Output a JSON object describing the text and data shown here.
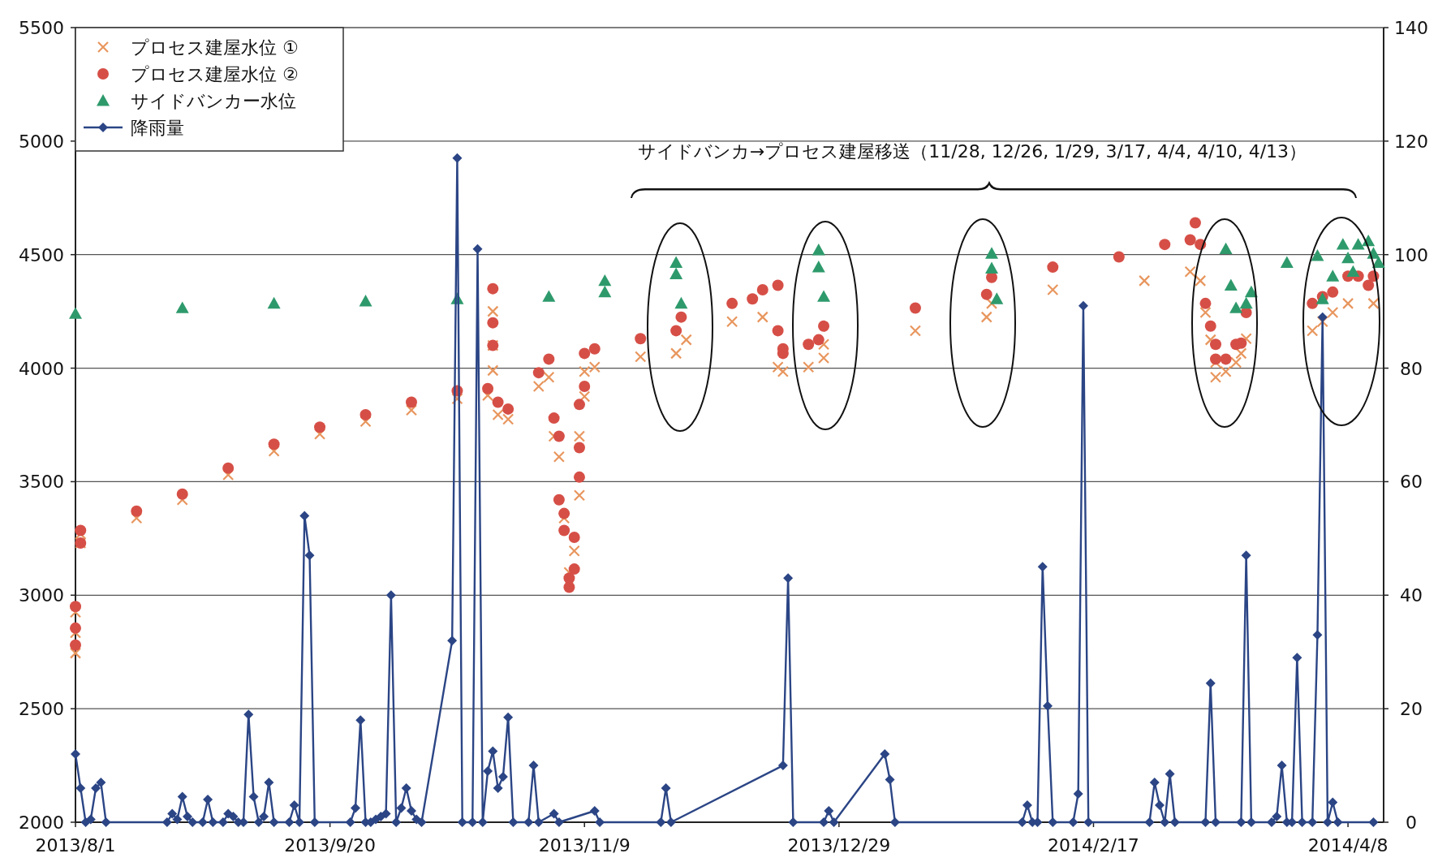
{
  "chart_data": {
    "type": "scatter",
    "x": [
      "2013-08-01",
      "2013-08-01",
      "2013-08-01",
      "2013-08-02",
      "2013-08-02",
      "2013-08-13",
      "2013-08-22",
      "2013-08-31",
      "2013-09-09",
      "2013-09-18",
      "2013-09-27",
      "2013-10-06",
      "2013-10-15",
      "2013-10-21",
      "2013-10-22",
      "2013-10-22",
      "2013-10-22",
      "2013-10-23",
      "2013-10-25",
      "2013-10-31",
      "2013-11-02",
      "2013-11-03",
      "2013-11-04",
      "2013-11-05",
      "2013-11-06",
      "2013-11-07",
      "2013-11-08",
      "2013-11-08",
      "2013-11-09",
      "2013-11-09",
      "2013-11-11",
      "2013-11-20",
      "2013-11-27",
      "2013-11-29",
      "2013-12-08",
      "2013-12-14",
      "2013-12-17",
      "2013-12-18",
      "2013-12-23",
      "2013-12-26",
      "2013-12-26",
      "2014-01-13",
      "2014-01-27",
      "2014-01-28",
      "2014-02-09",
      "2014-02-27",
      "2014-03-08",
      "2014-03-10",
      "2014-03-11",
      "2014-03-12",
      "2014-03-13",
      "2014-03-13",
      "2014-03-15",
      "2014-03-17",
      "2014-03-18",
      "2014-03-19",
      "2014-04-01",
      "2014-04-03",
      "2014-04-05",
      "2014-04-08",
      "2014-04-13"
    ],
    "series": [
      {
        "name": "プロセス建屋水位 ①",
        "color": "#e8965e",
        "marker": "cross",
        "values": [
          2745,
          2835,
          2925,
          3230,
          3270,
          3340,
          3420,
          3530,
          3635,
          3710,
          3765,
          3815,
          3865,
          3880,
          4250,
          4100,
          3990,
          3795,
          3775,
          3920,
          3960,
          3700,
          3610,
          3340,
          3100,
          3195,
          3440,
          3700,
          3875,
          3985,
          4005,
          4050,
          4065,
          4125,
          4205,
          4225,
          4005,
          3985,
          4005,
          4045,
          4105,
          4165,
          4225,
          4285,
          4345,
          4385,
          4425,
          4385,
          4245,
          4125,
          4025,
          3960,
          3985,
          4025,
          4065,
          4130,
          4165,
          4205,
          4245,
          4285,
          4285
        ]
      },
      {
        "name": "プロセス建屋水位 ②",
        "color": "#d64f47",
        "marker": "circle",
        "x": [
          "2013-08-01",
          "2013-08-01",
          "2013-08-01",
          "2013-08-02",
          "2013-08-02",
          "2013-08-13",
          "2013-08-22",
          "2013-08-31",
          "2013-09-09",
          "2013-09-18",
          "2013-09-27",
          "2013-10-06",
          "2013-10-15",
          "2013-10-21",
          "2013-10-22",
          "2013-10-22",
          "2013-10-22",
          "2013-10-23",
          "2013-10-25",
          "2013-10-31",
          "2013-11-02",
          "2013-11-03",
          "2013-11-04",
          "2013-11-04",
          "2013-11-05",
          "2013-11-05",
          "2013-11-06",
          "2013-11-06",
          "2013-11-07",
          "2013-11-07",
          "2013-11-08",
          "2013-11-08",
          "2013-11-08",
          "2013-11-09",
          "2013-11-09",
          "2013-11-11",
          "2013-11-20",
          "2013-11-27",
          "2013-11-28",
          "2013-12-08",
          "2013-12-12",
          "2013-12-14",
          "2013-12-17",
          "2013-12-17",
          "2013-12-18",
          "2013-12-18",
          "2013-12-23",
          "2013-12-25",
          "2013-12-26",
          "2014-01-13",
          "2014-01-27",
          "2014-01-28",
          "2014-02-09",
          "2014-02-22",
          "2014-03-03",
          "2014-03-08",
          "2014-03-09",
          "2014-03-10",
          "2014-03-11",
          "2014-03-12",
          "2014-03-13",
          "2014-03-13",
          "2014-03-15",
          "2014-03-17",
          "2014-03-18",
          "2014-03-19",
          "2014-04-01",
          "2014-04-03",
          "2014-04-05",
          "2014-04-08",
          "2014-04-10",
          "2014-04-12",
          "2014-04-13"
        ],
        "values": [
          2780,
          2855,
          2950,
          3230,
          3285,
          3370,
          3445,
          3560,
          3665,
          3740,
          3795,
          3850,
          3900,
          3910,
          4350,
          4200,
          4100,
          3850,
          3820,
          3980,
          4040,
          3780,
          3700,
          3420,
          3360,
          3285,
          3075,
          3035,
          3115,
          3255,
          3520,
          3650,
          3840,
          3920,
          4065,
          4085,
          4130,
          4165,
          4225,
          4285,
          4305,
          4345,
          4365,
          4165,
          4085,
          4065,
          4105,
          4125,
          4185,
          4265,
          4325,
          4400,
          4445,
          4490,
          4545,
          4565,
          4640,
          4545,
          4285,
          4185,
          4105,
          4040,
          4040,
          4105,
          4110,
          4245,
          4285,
          4315,
          4335,
          4405,
          4405,
          4365,
          4405
        ]
      },
      {
        "name": "サイドバンカー水位",
        "color": "#2e9a6c",
        "marker": "triangle",
        "x": [
          "2013-08-01",
          "2013-08-22",
          "2013-09-09",
          "2013-09-27",
          "2013-10-15",
          "2013-11-02",
          "2013-11-13",
          "2013-11-13",
          "2013-11-27",
          "2013-11-27",
          "2013-11-28",
          "2013-12-25",
          "2013-12-25",
          "2013-12-26",
          "2014-01-28",
          "2014-01-28",
          "2014-01-29",
          "2014-03-15",
          "2014-03-16",
          "2014-03-17",
          "2014-03-19",
          "2014-03-20",
          "2014-03-27",
          "2014-04-02",
          "2014-04-03",
          "2014-04-05",
          "2014-04-07",
          "2014-04-08",
          "2014-04-09",
          "2014-04-10",
          "2014-04-12",
          "2014-04-13",
          "2014-04-14"
        ],
        "values": [
          4240,
          4265,
          4285,
          4295,
          4305,
          4315,
          4335,
          4385,
          4465,
          4415,
          4285,
          4520,
          4445,
          4315,
          4505,
          4440,
          4305,
          4525,
          4365,
          4265,
          4285,
          4335,
          4465,
          4495,
          4305,
          4405,
          4545,
          4485,
          4425,
          4545,
          4560,
          4505,
          4465
        ]
      },
      {
        "name": "降雨量",
        "color": "#2b4585",
        "type": "line",
        "marker": "diamond",
        "axis": "y2",
        "x": [
          "2013-08-01",
          "2013-08-02",
          "2013-08-03",
          "2013-08-04",
          "2013-08-05",
          "2013-08-06",
          "2013-08-07",
          "2013-08-19",
          "2013-08-20",
          "2013-08-21",
          "2013-08-22",
          "2013-08-23",
          "2013-08-24",
          "2013-08-26",
          "2013-08-27",
          "2013-08-28",
          "2013-08-30",
          "2013-08-31",
          "2013-09-01",
          "2013-09-02",
          "2013-09-03",
          "2013-09-04",
          "2013-09-05",
          "2013-09-06",
          "2013-09-07",
          "2013-09-08",
          "2013-09-09",
          "2013-09-12",
          "2013-09-13",
          "2013-09-14",
          "2013-09-15",
          "2013-09-16",
          "2013-09-17",
          "2013-09-24",
          "2013-09-25",
          "2013-09-26",
          "2013-09-27",
          "2013-09-28",
          "2013-09-29",
          "2013-09-30",
          "2013-10-01",
          "2013-10-02",
          "2013-10-03",
          "2013-10-04",
          "2013-10-05",
          "2013-10-06",
          "2013-10-07",
          "2013-10-08",
          "2013-10-14",
          "2013-10-15",
          "2013-10-16",
          "2013-10-18",
          "2013-10-19",
          "2013-10-20",
          "2013-10-21",
          "2013-10-22",
          "2013-10-23",
          "2013-10-24",
          "2013-10-25",
          "2013-10-26",
          "2013-10-29",
          "2013-10-30",
          "2013-10-31",
          "2013-11-03",
          "2013-11-04",
          "2013-11-11",
          "2013-11-12",
          "2013-11-24",
          "2013-11-25",
          "2013-11-26",
          "2013-12-18",
          "2013-12-19",
          "2013-12-20",
          "2013-12-26",
          "2013-12-27",
          "2013-12-28",
          "2014-01-07",
          "2014-01-08",
          "2014-01-09",
          "2014-02-03",
          "2014-02-04",
          "2014-02-05",
          "2014-02-06",
          "2014-02-07",
          "2014-02-08",
          "2014-02-09",
          "2014-02-13",
          "2014-02-14",
          "2014-02-15",
          "2014-02-16",
          "2014-02-28",
          "2014-03-01",
          "2014-03-02",
          "2014-03-03",
          "2014-03-04",
          "2014-03-05",
          "2014-03-11",
          "2014-03-12",
          "2014-03-13",
          "2014-03-18",
          "2014-03-19",
          "2014-03-20",
          "2014-03-24",
          "2014-03-25",
          "2014-03-26",
          "2014-03-27",
          "2014-03-28",
          "2014-03-29",
          "2014-03-30",
          "2014-04-01",
          "2014-04-02",
          "2014-04-03",
          "2014-04-04",
          "2014-04-05",
          "2014-04-06",
          "2014-04-13"
        ],
        "values": [
          12,
          6,
          0,
          0.5,
          6,
          7,
          0,
          0,
          1.5,
          0.5,
          4.5,
          1,
          0,
          0,
          4,
          0,
          0,
          1.5,
          1,
          0,
          0,
          19,
          4.5,
          0,
          1,
          7,
          0,
          0,
          3,
          0,
          54,
          47,
          0,
          0,
          2.5,
          18,
          0,
          0,
          0.5,
          1,
          1.5,
          40,
          0,
          2.5,
          6,
          2,
          0.5,
          0,
          32,
          117,
          0,
          0,
          101,
          0,
          9,
          12.5,
          6,
          8,
          18.5,
          0,
          0,
          10,
          0,
          1.5,
          0,
          2,
          0,
          0,
          6,
          0,
          10,
          43,
          0,
          0,
          2,
          0,
          12,
          7.5,
          0,
          0,
          3,
          0,
          0,
          45,
          20.5,
          0,
          0,
          5,
          91,
          0,
          0,
          7,
          3,
          0,
          8.5,
          0,
          0,
          24.5,
          0,
          0,
          47,
          0,
          0,
          1,
          10,
          0,
          0,
          29,
          0,
          0,
          33,
          89,
          0,
          3.5,
          0,
          0
        ]
      }
    ],
    "xlim": [
      "2013-08-01",
      "2014-04-15"
    ],
    "xticks": [
      {
        "value": "2013-08-01",
        "label": "2013/8/1"
      },
      {
        "value": "2013-09-20",
        "label": "2013/9/20"
      },
      {
        "value": "2013-11-09",
        "label": "2013/11/9"
      },
      {
        "value": "2013-12-29",
        "label": "2013/12/29"
      },
      {
        "value": "2014-02-17",
        "label": "2014/2/17"
      },
      {
        "value": "2014-04-08",
        "label": "2014/4/8"
      }
    ],
    "ylim": [
      2000,
      5500
    ],
    "yticks": [
      2000,
      2500,
      3000,
      3500,
      4000,
      4500,
      5000,
      5500
    ],
    "y2lim": [
      0,
      140
    ],
    "y2ticks": [
      0,
      20,
      40,
      60,
      80,
      100,
      120,
      140
    ],
    "grid": "y",
    "legend": "top left",
    "annotations": [
      "サイドバンカ→プロセス建屋移送（11/28, 12/26, 1/29, 3/17, 4/4, 4/10, 4/13）"
    ]
  }
}
